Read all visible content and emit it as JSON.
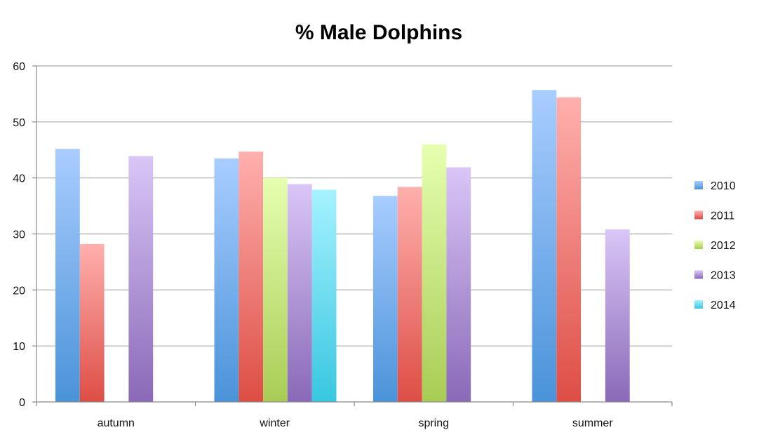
{
  "chart_data": {
    "type": "bar",
    "title": "% Male Dolphins",
    "xlabel": "",
    "ylabel": "",
    "categories": [
      "autumn",
      "winter",
      "spring",
      "summer"
    ],
    "ylim": [
      0,
      60
    ],
    "yticks": [
      0,
      10,
      20,
      30,
      40,
      50,
      60
    ],
    "grid": true,
    "legend": "right",
    "series": [
      {
        "name": "2010",
        "color_top": "#a9cdff",
        "color_bottom": "#4a93d9",
        "values": [
          45.2,
          43.5,
          36.8,
          55.7
        ]
      },
      {
        "name": "2011",
        "color_top": "#ffb0ae",
        "color_bottom": "#dd4e45",
        "values": [
          28.2,
          44.7,
          38.4,
          54.4
        ]
      },
      {
        "name": "2012",
        "color_top": "#e6ffb0",
        "color_bottom": "#a9cc55",
        "values": [
          null,
          40.0,
          46.0,
          null
        ]
      },
      {
        "name": "2013",
        "color_top": "#d9c6f6",
        "color_bottom": "#8a69b8",
        "values": [
          43.9,
          38.9,
          41.9,
          30.8
        ]
      },
      {
        "name": "2014",
        "color_top": "#a6f2ff",
        "color_bottom": "#38c7e0",
        "values": [
          null,
          37.9,
          null,
          null
        ]
      }
    ]
  }
}
